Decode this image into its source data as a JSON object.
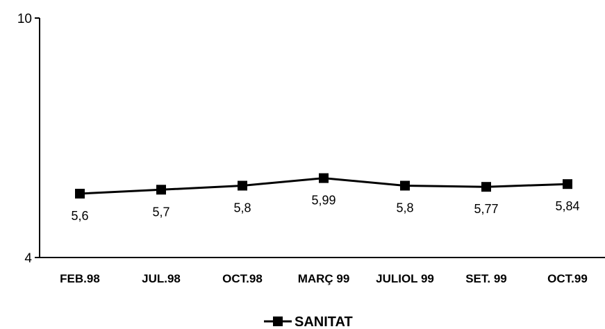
{
  "chart_data": {
    "type": "line",
    "categories": [
      "FEB.98",
      "JUL.98",
      "OCT.98",
      "MARÇ 99",
      "JULIOL 99",
      "SET. 99",
      "OCT.99"
    ],
    "series": [
      {
        "name": "SANITAT",
        "values": [
          5.6,
          5.7,
          5.8,
          5.99,
          5.8,
          5.77,
          5.84
        ],
        "value_labels": [
          "5,6",
          "5,7",
          "5,8",
          "5,99",
          "5,8",
          "5,77",
          "5,84"
        ],
        "color": "#000000",
        "marker": "square"
      }
    ],
    "ylim": [
      4,
      10
    ],
    "yticks": [
      4,
      10
    ],
    "ytick_labels": [
      "4",
      "10"
    ],
    "title": "",
    "xlabel": "",
    "ylabel": "",
    "grid": false,
    "legend": "bottom-center"
  }
}
